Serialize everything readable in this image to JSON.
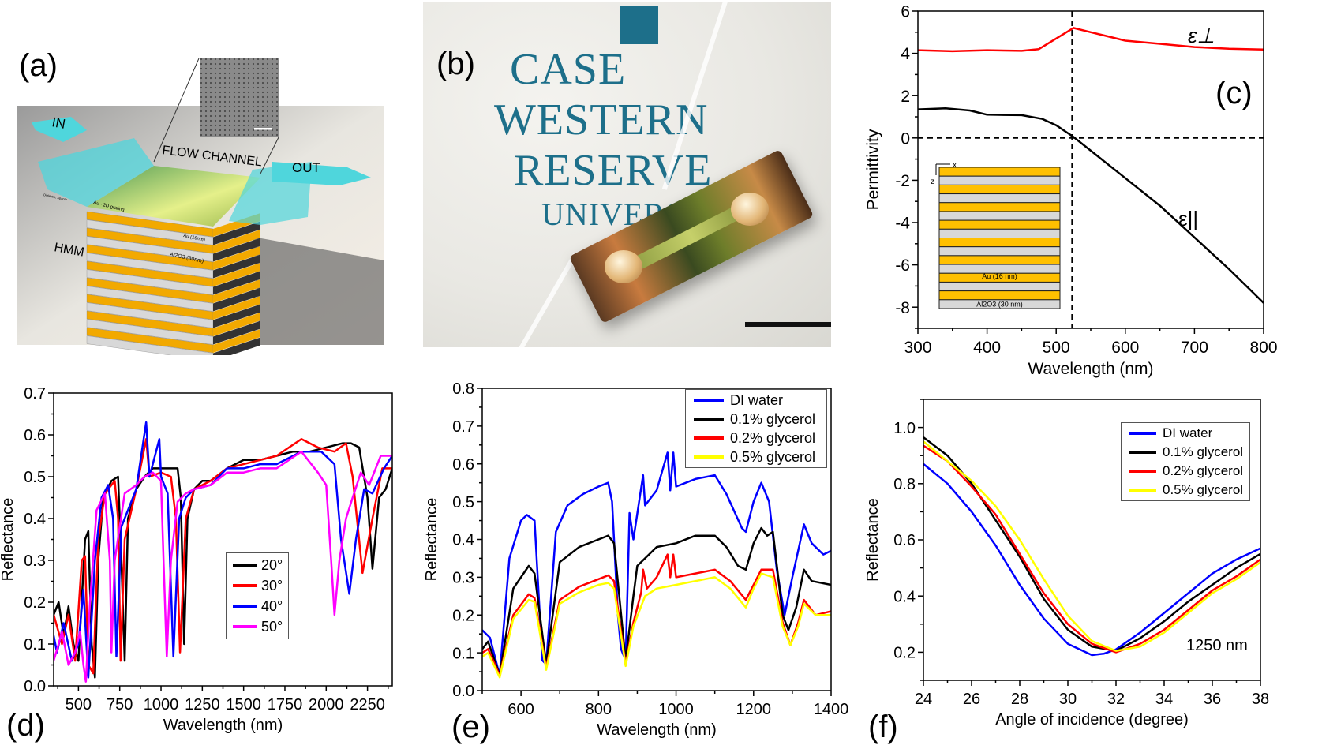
{
  "panel_labels": {
    "a": "(a)",
    "b": "(b)",
    "c": "(c)",
    "d": "(d)",
    "e": "(e)",
    "f": "(f)"
  },
  "panel_a": {
    "labels": {
      "in": "IN",
      "flow_channel": "FLOW CHANNEL",
      "out": "OUT",
      "hmm": "HMM",
      "au": "Au (16nm)",
      "al2o3": "Al2O3 (30nm)",
      "spacer": "Dielectric Spacer",
      "grating": "Au - 2D grating"
    },
    "colors": {
      "channel": "#4fd6dc",
      "gold": "#f2a900",
      "layer": "#d8d8d8"
    }
  },
  "panel_b": {
    "logo_lines": [
      "CASE",
      "WESTERN",
      "RESERVE",
      "UNIVERSITY"
    ],
    "colors": {
      "logo": "#1d6f8a"
    }
  },
  "chart_data": [
    {
      "id": "c",
      "type": "line",
      "xlabel": "Wavelength (nm)",
      "ylabel": "Permittivity",
      "xlim": [
        300,
        800
      ],
      "ylim": [
        -9,
        6
      ],
      "xticks": [
        300,
        400,
        500,
        600,
        700,
        800
      ],
      "yticks": [
        -8,
        -6,
        -4,
        -2,
        0,
        2,
        4,
        6
      ],
      "grid": false,
      "annotations": {
        "eps_perp": "ε⊥",
        "eps_par": "ε||",
        "inset_au": "Au (16 nm)",
        "inset_al2o3": "Al2O3 (30 nm)",
        "inset_x": "x",
        "inset_z": "z"
      },
      "reference_lines": {
        "vertical_x": 523,
        "horizontal_y": 0
      },
      "series": [
        {
          "label": "ε⊥",
          "color": "#ff0000",
          "x": [
            300,
            350,
            400,
            450,
            475,
            500,
            525,
            550,
            600,
            650,
            700,
            750,
            800
          ],
          "y": [
            4.15,
            4.1,
            4.15,
            4.12,
            4.2,
            4.7,
            5.2,
            5.0,
            4.6,
            4.45,
            4.3,
            4.22,
            4.18
          ]
        },
        {
          "label": "ε||",
          "color": "#000000",
          "x": [
            300,
            340,
            375,
            400,
            450,
            480,
            500,
            525,
            550,
            600,
            650,
            700,
            750,
            800
          ],
          "y": [
            1.35,
            1.4,
            1.3,
            1.1,
            1.08,
            0.9,
            0.6,
            0.05,
            -0.6,
            -1.9,
            -3.2,
            -4.7,
            -6.2,
            -7.8
          ]
        }
      ]
    },
    {
      "id": "d",
      "type": "line",
      "xlabel": "Wavelength (nm)",
      "ylabel": "Reflectance",
      "xlim": [
        350,
        2400
      ],
      "ylim": [
        0,
        0.7
      ],
      "xticks": [
        500,
        750,
        1000,
        1250,
        1500,
        1750,
        2000,
        2250
      ],
      "yticks": [
        0.0,
        0.1,
        0.2,
        0.3,
        0.4,
        0.5,
        0.6,
        0.7
      ],
      "ytick_decimals": 1,
      "grid": false,
      "legend": "center-right",
      "series": [
        {
          "name": "20°",
          "color": "#000000",
          "x": [
            350,
            380,
            410,
            440,
            470,
            500,
            540,
            560,
            580,
            600,
            620,
            650,
            700,
            740,
            760,
            780,
            800,
            850,
            900,
            950,
            1000,
            1050,
            1100,
            1120,
            1140,
            1160,
            1200,
            1250,
            1300,
            1400,
            1500,
            1600,
            1700,
            1800,
            1900,
            2000,
            2100,
            2150,
            2200,
            2250,
            2280,
            2320,
            2360,
            2400
          ],
          "y": [
            0.17,
            0.2,
            0.12,
            0.19,
            0.1,
            0.06,
            0.35,
            0.37,
            0.1,
            0.02,
            0.3,
            0.45,
            0.49,
            0.5,
            0.3,
            0.06,
            0.4,
            0.47,
            0.5,
            0.52,
            0.52,
            0.52,
            0.52,
            0.45,
            0.1,
            0.4,
            0.47,
            0.49,
            0.49,
            0.52,
            0.54,
            0.54,
            0.55,
            0.56,
            0.56,
            0.57,
            0.58,
            0.58,
            0.57,
            0.45,
            0.28,
            0.45,
            0.47,
            0.52
          ]
        },
        {
          "name": "30°",
          "color": "#ff0000",
          "x": [
            350,
            400,
            440,
            480,
            520,
            540,
            560,
            590,
            620,
            660,
            720,
            740,
            755,
            780,
            850,
            910,
            930,
            1000,
            1060,
            1090,
            1115,
            1150,
            1200,
            1300,
            1400,
            1500,
            1600,
            1700,
            1850,
            1950,
            2050,
            2120,
            2160,
            2220,
            2280,
            2340,
            2400
          ],
          "y": [
            0.17,
            0.1,
            0.17,
            0.06,
            0.3,
            0.31,
            0.05,
            0.03,
            0.35,
            0.46,
            0.49,
            0.4,
            0.06,
            0.35,
            0.47,
            0.59,
            0.5,
            0.51,
            0.5,
            0.4,
            0.08,
            0.4,
            0.47,
            0.49,
            0.52,
            0.53,
            0.54,
            0.55,
            0.59,
            0.57,
            0.56,
            0.58,
            0.5,
            0.27,
            0.4,
            0.52,
            0.52
          ]
        },
        {
          "name": "40°",
          "color": "#0000ff",
          "x": [
            350,
            370,
            410,
            460,
            500,
            530,
            560,
            600,
            640,
            680,
            710,
            730,
            760,
            850,
            910,
            930,
            990,
            1000,
            1040,
            1075,
            1110,
            1150,
            1200,
            1300,
            1400,
            1500,
            1600,
            1700,
            1850,
            1970,
            2050,
            2090,
            2140,
            2180,
            2230,
            2280,
            2350,
            2400
          ],
          "y": [
            0.12,
            0.08,
            0.15,
            0.06,
            0.1,
            0.23,
            0.02,
            0.3,
            0.45,
            0.48,
            0.4,
            0.07,
            0.38,
            0.47,
            0.63,
            0.5,
            0.59,
            0.5,
            0.46,
            0.07,
            0.4,
            0.45,
            0.47,
            0.48,
            0.52,
            0.52,
            0.53,
            0.53,
            0.56,
            0.56,
            0.53,
            0.35,
            0.22,
            0.35,
            0.47,
            0.46,
            0.52,
            0.55
          ]
        },
        {
          "name": "50°",
          "color": "#ff00ff",
          "x": [
            350,
            380,
            400,
            440,
            480,
            510,
            530,
            545,
            570,
            610,
            660,
            690,
            700,
            720,
            780,
            850,
            900,
            950,
            1000,
            1015,
            1035,
            1060,
            1100,
            1150,
            1200,
            1300,
            1400,
            1500,
            1600,
            1700,
            1850,
            1950,
            2000,
            2030,
            2050,
            2080,
            2120,
            2160,
            2210,
            2260,
            2330,
            2400
          ],
          "y": [
            0.06,
            0.1,
            0.13,
            0.05,
            0.08,
            0.13,
            0.05,
            0.01,
            0.2,
            0.42,
            0.46,
            0.3,
            0.08,
            0.3,
            0.46,
            0.48,
            0.5,
            0.51,
            0.49,
            0.3,
            0.07,
            0.3,
            0.44,
            0.46,
            0.47,
            0.48,
            0.51,
            0.51,
            0.52,
            0.52,
            0.56,
            0.51,
            0.48,
            0.3,
            0.17,
            0.3,
            0.4,
            0.45,
            0.51,
            0.48,
            0.55,
            0.55
          ]
        }
      ]
    },
    {
      "id": "e",
      "type": "line",
      "xlabel": "Wavelength (nm)",
      "ylabel": "Reflectance",
      "xlim": [
        500,
        1400
      ],
      "ylim": [
        0,
        0.8
      ],
      "xticks": [
        600,
        800,
        1000,
        1200,
        1400
      ],
      "yticks": [
        0.0,
        0.1,
        0.2,
        0.3,
        0.4,
        0.5,
        0.6,
        0.7,
        0.8
      ],
      "ytick_decimals": 1,
      "grid": false,
      "legend": "top-right",
      "series": [
        {
          "name": "DI water",
          "color": "#0000ff",
          "x": [
            500,
            520,
            545,
            570,
            600,
            615,
            635,
            655,
            665,
            690,
            720,
            760,
            800,
            825,
            835,
            850,
            858,
            870,
            880,
            890,
            915,
            920,
            950,
            978,
            985,
            993,
            1000,
            1050,
            1100,
            1130,
            1170,
            1180,
            1200,
            1220,
            1240,
            1260,
            1280,
            1300,
            1330,
            1350,
            1380,
            1400
          ],
          "y": [
            0.16,
            0.14,
            0.04,
            0.35,
            0.45,
            0.465,
            0.45,
            0.08,
            0.07,
            0.42,
            0.49,
            0.52,
            0.54,
            0.55,
            0.5,
            0.2,
            0.11,
            0.08,
            0.47,
            0.4,
            0.57,
            0.49,
            0.53,
            0.63,
            0.53,
            0.63,
            0.54,
            0.56,
            0.57,
            0.52,
            0.43,
            0.42,
            0.5,
            0.55,
            0.5,
            0.32,
            0.2,
            0.3,
            0.44,
            0.39,
            0.36,
            0.37
          ]
        },
        {
          "name": "0.1% glycerol",
          "color": "#000000",
          "x": [
            500,
            515,
            545,
            580,
            620,
            635,
            665,
            700,
            750,
            800,
            825,
            840,
            870,
            890,
            900,
            950,
            1000,
            1050,
            1100,
            1130,
            1160,
            1180,
            1200,
            1220,
            1235,
            1250,
            1275,
            1290,
            1310,
            1330,
            1350,
            1400
          ],
          "y": [
            0.11,
            0.13,
            0.04,
            0.27,
            0.33,
            0.31,
            0.07,
            0.34,
            0.38,
            0.4,
            0.41,
            0.39,
            0.08,
            0.25,
            0.33,
            0.38,
            0.39,
            0.41,
            0.41,
            0.38,
            0.33,
            0.32,
            0.39,
            0.43,
            0.41,
            0.42,
            0.2,
            0.16,
            0.22,
            0.32,
            0.29,
            0.28
          ]
        },
        {
          "name": "0.2% glycerol",
          "color": "#ff0000",
          "x": [
            500,
            515,
            545,
            580,
            620,
            635,
            665,
            700,
            750,
            800,
            825,
            840,
            870,
            890,
            910,
            915,
            925,
            950,
            978,
            985,
            993,
            1000,
            1050,
            1100,
            1140,
            1180,
            1200,
            1220,
            1250,
            1275,
            1295,
            1315,
            1330,
            1360,
            1400
          ],
          "y": [
            0.1,
            0.11,
            0.04,
            0.2,
            0.255,
            0.245,
            0.06,
            0.24,
            0.275,
            0.295,
            0.305,
            0.29,
            0.07,
            0.18,
            0.26,
            0.32,
            0.27,
            0.3,
            0.36,
            0.3,
            0.36,
            0.3,
            0.31,
            0.32,
            0.29,
            0.24,
            0.28,
            0.32,
            0.32,
            0.18,
            0.12,
            0.18,
            0.24,
            0.2,
            0.21
          ]
        },
        {
          "name": "0.5% glycerol",
          "color": "#ffff00",
          "x": [
            500,
            515,
            545,
            580,
            620,
            635,
            665,
            700,
            750,
            800,
            825,
            840,
            870,
            890,
            920,
            950,
            1000,
            1050,
            1100,
            1140,
            1180,
            1200,
            1220,
            1250,
            1275,
            1295,
            1315,
            1330,
            1360,
            1400
          ],
          "y": [
            0.09,
            0.1,
            0.035,
            0.19,
            0.24,
            0.235,
            0.055,
            0.23,
            0.26,
            0.28,
            0.285,
            0.27,
            0.065,
            0.17,
            0.25,
            0.27,
            0.28,
            0.29,
            0.3,
            0.27,
            0.22,
            0.27,
            0.31,
            0.3,
            0.17,
            0.12,
            0.17,
            0.23,
            0.2,
            0.2
          ]
        }
      ]
    },
    {
      "id": "f",
      "type": "line",
      "xlabel": "Angle of incidence (degree)",
      "ylabel": "Reflectance",
      "xlim": [
        24,
        38
      ],
      "ylim": [
        0.1,
        1.1
      ],
      "xticks": [
        24,
        26,
        28,
        30,
        32,
        34,
        36,
        38
      ],
      "yticks": [
        0.2,
        0.4,
        0.6,
        0.8,
        1.0
      ],
      "ytick_decimals": 1,
      "grid": false,
      "legend": "top-right",
      "annotation": "1250 nm",
      "series": [
        {
          "name": "DI water",
          "color": "#0000ff",
          "x": [
            24,
            25,
            26,
            27,
            28,
            29,
            30,
            31,
            31.5,
            32,
            33,
            34,
            35,
            36,
            37,
            38
          ],
          "y": [
            0.87,
            0.8,
            0.7,
            0.58,
            0.44,
            0.32,
            0.23,
            0.19,
            0.195,
            0.21,
            0.27,
            0.34,
            0.41,
            0.48,
            0.53,
            0.57
          ]
        },
        {
          "name": "0.1% glycerol",
          "color": "#000000",
          "x": [
            24,
            25,
            26,
            27,
            28,
            29,
            30,
            31,
            32,
            33,
            34,
            35,
            36,
            37,
            38
          ],
          "y": [
            0.965,
            0.9,
            0.8,
            0.67,
            0.54,
            0.39,
            0.28,
            0.22,
            0.205,
            0.25,
            0.31,
            0.38,
            0.44,
            0.5,
            0.55
          ]
        },
        {
          "name": "0.2% glycerol",
          "color": "#ff0000",
          "x": [
            24,
            25,
            26,
            27,
            28,
            29,
            30,
            31,
            32,
            33,
            34,
            35,
            36,
            37,
            38
          ],
          "y": [
            0.935,
            0.88,
            0.79,
            0.69,
            0.55,
            0.41,
            0.3,
            0.23,
            0.2,
            0.23,
            0.28,
            0.35,
            0.42,
            0.47,
            0.53
          ]
        },
        {
          "name": "0.5% glycerol",
          "color": "#ffff00",
          "x": [
            24,
            25,
            26,
            27,
            28,
            29,
            30,
            31,
            32,
            33,
            34,
            35,
            36,
            37,
            38
          ],
          "y": [
            0.95,
            0.88,
            0.81,
            0.72,
            0.6,
            0.46,
            0.33,
            0.24,
            0.205,
            0.22,
            0.27,
            0.34,
            0.41,
            0.46,
            0.52
          ]
        }
      ]
    }
  ]
}
